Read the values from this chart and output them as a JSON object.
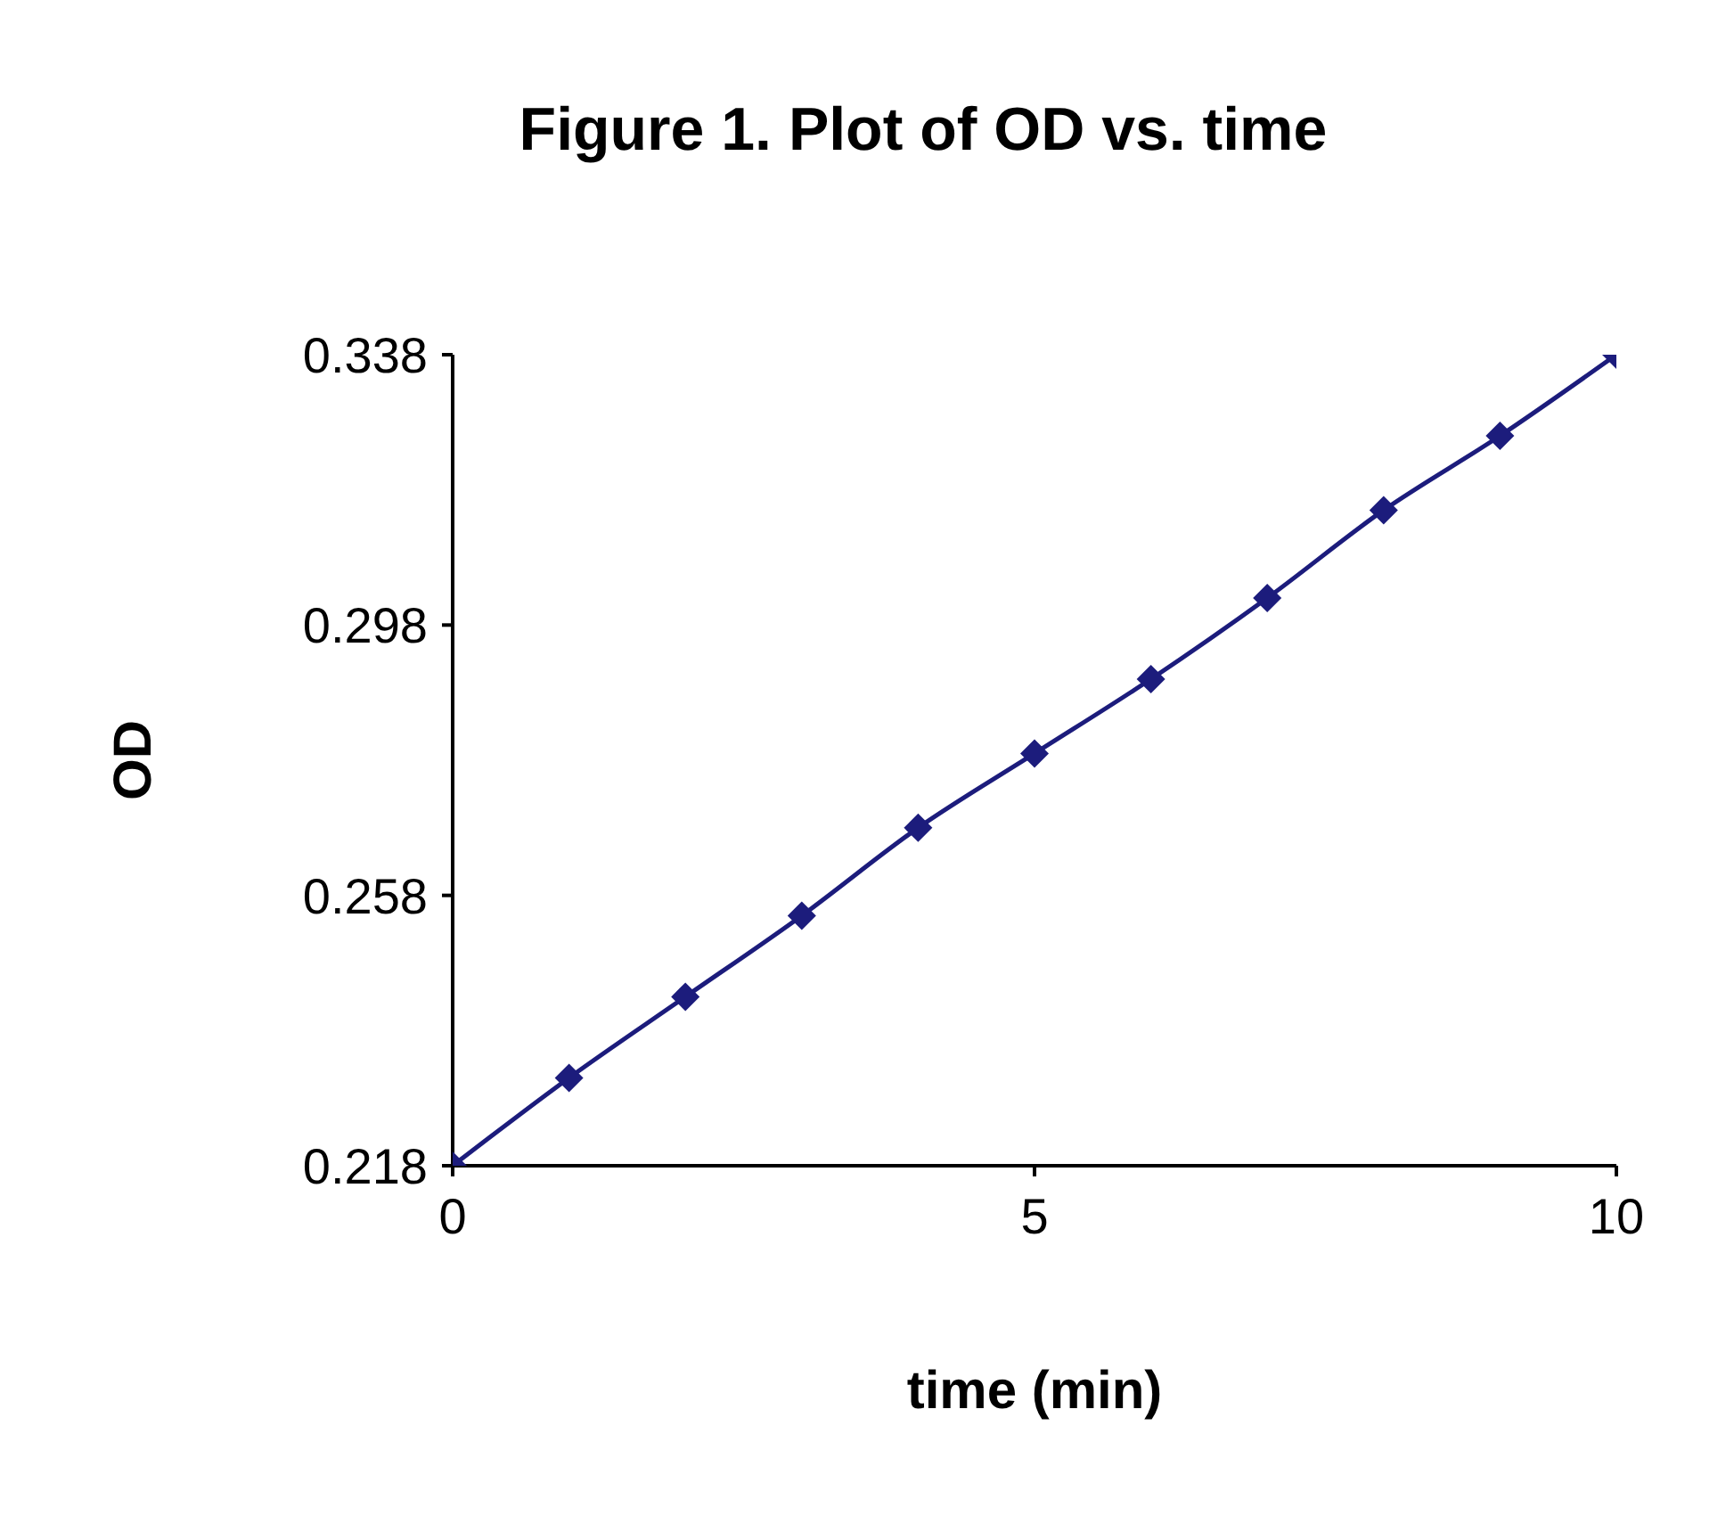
{
  "chart_data": {
    "type": "line",
    "title": "Figure 1. Plot of OD vs. time",
    "xlabel": "time (min)",
    "ylabel": "OD",
    "x": [
      0,
      1,
      2,
      3,
      4,
      5,
      6,
      7,
      8,
      9,
      10
    ],
    "series": [
      {
        "color": "#1c1c7c",
        "values": [
          0.218,
          0.231,
          0.243,
          0.255,
          0.268,
          0.279,
          0.29,
          0.302,
          0.315,
          0.326,
          0.338
        ]
      }
    ],
    "xlim": [
      0,
      10
    ],
    "xticks": [
      0,
      5,
      10
    ],
    "ylim": [
      0.218,
      0.338
    ],
    "yticks": [
      0.218,
      0.258,
      0.298,
      0.338
    ],
    "grid": false,
    "legend": false,
    "marker": "diamond",
    "line_style": "solid"
  }
}
